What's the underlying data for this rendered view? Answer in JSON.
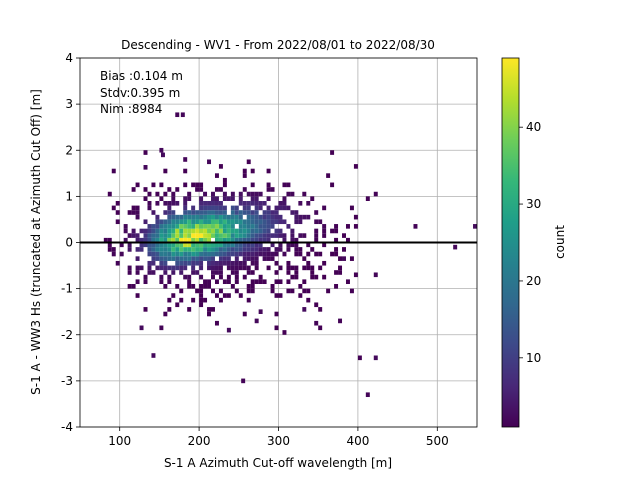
{
  "chart_data": {
    "type": "heatmap",
    "title": "Descending - WV1 - From 2022/08/01 to 2022/08/30",
    "xlabel": "S-1 A Azimuth Cut-off wavelength [m]",
    "ylabel": "S-1 A - WW3 Hs (truncated at Azimuth Cut Off) [m]",
    "xlim": [
      50,
      550
    ],
    "ylim": [
      -4,
      4
    ],
    "x_ticks": [
      100,
      200,
      300,
      400,
      500
    ],
    "y_ticks": [
      -4,
      -3,
      -2,
      -1,
      0,
      1,
      2,
      3,
      4
    ],
    "grid": true,
    "reference_line_y": 0,
    "annotations": [
      "Bias :0.104 m",
      "Stdv:0.395 m",
      "Nim :8984"
    ],
    "colorbar": {
      "label": "count",
      "range": [
        1,
        49
      ],
      "ticks": [
        10,
        20,
        30,
        40
      ],
      "colormap": "viridis"
    },
    "density_core": {
      "x_mode": 185,
      "y_mode": 0.12,
      "peak_count": 48
    },
    "outliers": [
      [
        170,
        2.72
      ],
      [
        177,
        2.72
      ],
      [
        150,
        1.95
      ],
      [
        152,
        1.85
      ],
      [
        180,
        1.75
      ],
      [
        210,
        1.7
      ],
      [
        130,
        1.58
      ],
      [
        420,
        1.0
      ],
      [
        410,
        0.9
      ],
      [
        470,
        0.3
      ],
      [
        545,
        0.3
      ],
      [
        520,
        -0.15
      ],
      [
        380,
        -0.4
      ],
      [
        395,
        -0.75
      ],
      [
        420,
        -0.75
      ],
      [
        375,
        -1.75
      ],
      [
        400,
        -2.55
      ],
      [
        420,
        -2.55
      ],
      [
        253,
        -3.05
      ],
      [
        410,
        -3.35
      ],
      [
        125,
        -1.9
      ],
      [
        150,
        -1.9
      ],
      [
        140,
        -2.5
      ],
      [
        270,
        -1.75
      ],
      [
        275,
        -1.55
      ],
      [
        330,
        -1.5
      ],
      [
        345,
        -1.8
      ],
      [
        235,
        -1.95
      ]
    ]
  }
}
